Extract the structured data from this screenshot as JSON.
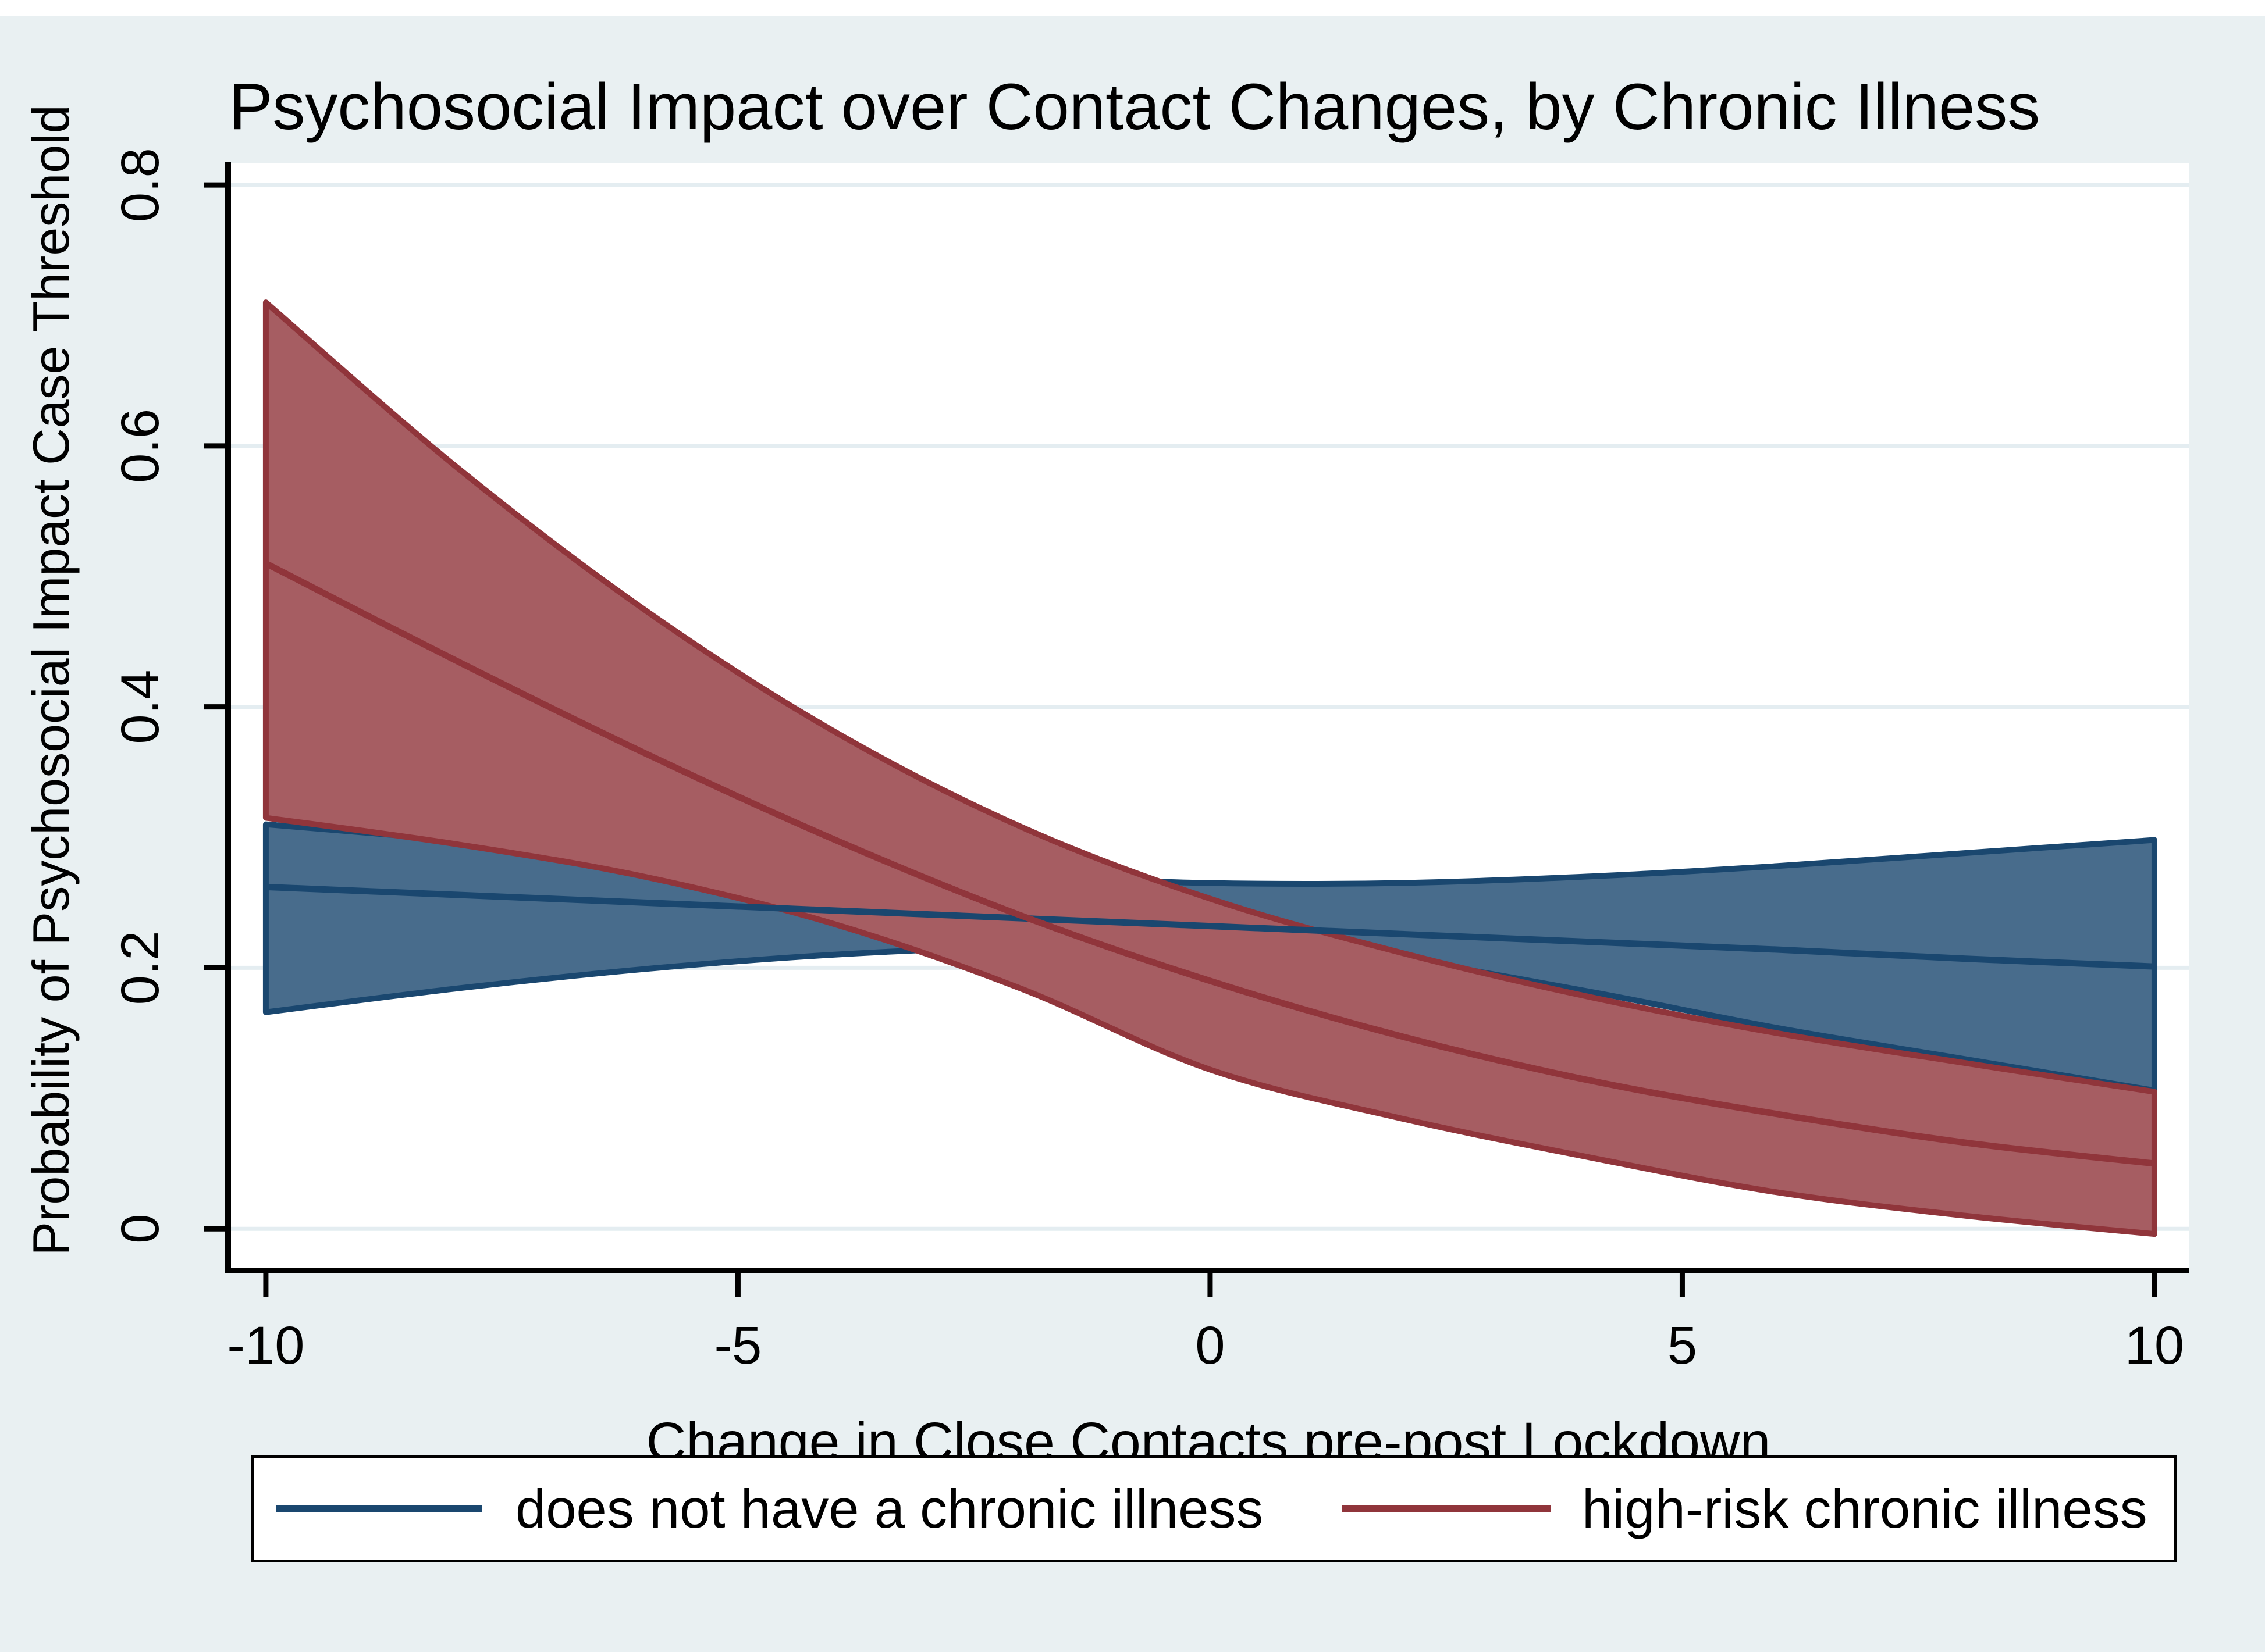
{
  "title": "Psychosocial Impact over Contact Changes, by Chronic Illness",
  "chart_data": {
    "type": "area",
    "subtype": "line-with-confidence-bands",
    "title": "Psychosocial Impact over Contact Changes, by Chronic Illness",
    "xlabel": "Change in Close Contacts pre-post Lockdown",
    "ylabel": "Probability of Psychosocial Impact Case Threshold",
    "x": [
      -10,
      -8,
      -6,
      -4,
      -2,
      0,
      2,
      4,
      6,
      8,
      10
    ],
    "series": [
      {
        "name": "does not have a chronic illness",
        "line_color": "#1a476f",
        "fill_color": "#486c8c",
        "mid": [
          0.262,
          0.256,
          0.25,
          0.244,
          0.238,
          0.232,
          0.226,
          0.22,
          0.214,
          0.207,
          0.201
        ],
        "upper": [
          0.31,
          0.298,
          0.287,
          0.278,
          0.27,
          0.265,
          0.265,
          0.27,
          0.278,
          0.288,
          0.298
        ],
        "lower": [
          0.166,
          0.184,
          0.199,
          0.21,
          0.216,
          0.216,
          0.206,
          0.182,
          0.154,
          0.13,
          0.106
        ]
      },
      {
        "name": "high-risk chronic illness",
        "line_color": "#90353b",
        "fill_color": "#a65d62",
        "mid": [
          0.51,
          0.436,
          0.365,
          0.299,
          0.24,
          0.19,
          0.148,
          0.114,
          0.088,
          0.066,
          0.05
        ],
        "upper": [
          0.71,
          0.585,
          0.475,
          0.382,
          0.308,
          0.253,
          0.212,
          0.178,
          0.15,
          0.127,
          0.105
        ],
        "lower": [
          0.315,
          0.295,
          0.27,
          0.234,
          0.184,
          0.122,
          0.085,
          0.055,
          0.028,
          0.01,
          -0.004
        ]
      }
    ],
    "xticks": [
      -10,
      -5,
      0,
      5,
      10
    ],
    "xtick_labels": [
      "-10",
      "-5",
      "0",
      "5",
      "10"
    ],
    "yticks": [
      0,
      0.2,
      0.4,
      0.6,
      0.8
    ],
    "ytick_labels": [
      "0",
      "0.2",
      "0.4",
      "0.6",
      "0.8"
    ],
    "xlim": [
      -10.4,
      10.37
    ],
    "ylim": [
      -0.032,
      0.817
    ],
    "grid": "horizontal",
    "gridline_color": "#e4edf1",
    "legend_position": "bottom"
  },
  "legend": {
    "items": [
      {
        "label": "does not have a chronic illness",
        "color": "#1a476f"
      },
      {
        "label": "high-risk chronic illness",
        "color": "#90353b"
      }
    ]
  },
  "colors": {
    "background": "#e9f0f2",
    "plot_background": "#ffffff",
    "axis": "#000000",
    "text": "#000000",
    "navy": "#1a476f",
    "maroon": "#90353b"
  }
}
